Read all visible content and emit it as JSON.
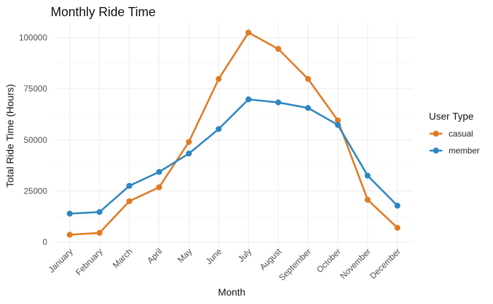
{
  "chart_data": {
    "type": "line",
    "title": "Monthly Ride Time",
    "xlabel": "Month",
    "ylabel": "Total Ride Time (Hours)",
    "categories": [
      "January",
      "February",
      "March",
      "April",
      "May",
      "June",
      "July",
      "August",
      "September",
      "October",
      "November",
      "December"
    ],
    "y_ticks": [
      0,
      25000,
      50000,
      75000,
      100000
    ],
    "ylim": [
      0,
      105000
    ],
    "grid": true,
    "legend": {
      "title": "User Type",
      "position": "right"
    },
    "series": [
      {
        "name": "casual",
        "color": "#E07B24",
        "values": [
          3600,
          4500,
          20000,
          26800,
          49000,
          79800,
          102500,
          94500,
          79800,
          59500,
          20700,
          7000
        ]
      },
      {
        "name": "member",
        "color": "#2E86C1",
        "values": [
          13900,
          14700,
          27500,
          34300,
          43300,
          55300,
          69800,
          68300,
          65600,
          57300,
          32500,
          17800
        ]
      }
    ]
  }
}
